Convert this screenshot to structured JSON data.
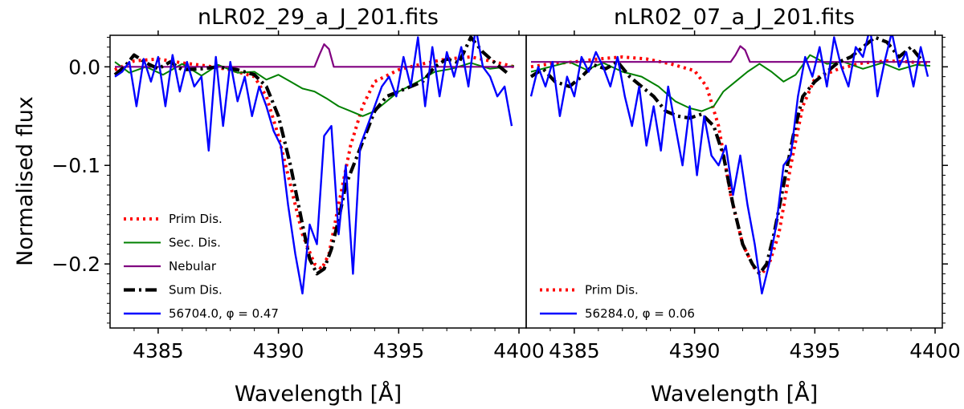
{
  "figure": {
    "ylabel": "Normalised flux"
  },
  "chart_data": [
    {
      "type": "line",
      "title": "nLR02_29_a_J_201.fits",
      "xlabel": "Wavelength [Å]",
      "ylabel": "Normalised flux",
      "xlim": [
        4383,
        4400.3
      ],
      "ylim": [
        -0.265,
        0.032
      ],
      "xticks": [
        4385,
        4390,
        4395,
        4400
      ],
      "xtick_labels": [
        "4385",
        "4390",
        "4395",
        "4400"
      ],
      "yticks": [
        0.0,
        -0.1,
        -0.2
      ],
      "ytick_labels": [
        "0.0",
        "−0.1",
        "−0.2"
      ],
      "legend_position": "lower-left",
      "series": [
        {
          "name": "Prim Dis.",
          "color": "#ff0000",
          "style": "dotted",
          "width": 4,
          "x": [
            4383.2,
            4384,
            4385,
            4386,
            4387,
            4388,
            4389,
            4389.5,
            4390,
            4390.5,
            4391,
            4391.5,
            4391.8,
            4392.1,
            4392.5,
            4393,
            4393.5,
            4394,
            4395,
            4396,
            4397,
            4398,
            4399,
            4399.8
          ],
          "y": [
            -0.003,
            0.006,
            0.008,
            0.004,
            0.001,
            -0.003,
            -0.01,
            -0.03,
            -0.07,
            -0.12,
            -0.17,
            -0.2,
            -0.205,
            -0.19,
            -0.14,
            -0.08,
            -0.04,
            -0.015,
            -0.003,
            0.003,
            0.008,
            0.01,
            0.005,
            0.0
          ]
        },
        {
          "name": "Sec. Dis.",
          "color": "#008000",
          "style": "solid",
          "width": 2,
          "x": [
            4383.2,
            4383.8,
            4384.5,
            4385.2,
            4386,
            4386.8,
            4387.5,
            4388.3,
            4389,
            4389.5,
            4390,
            4390.5,
            4391,
            4391.5,
            4392,
            4392.5,
            4393,
            4393.5,
            4394,
            4394.5,
            4395,
            4395.8,
            4396.5,
            4397.2,
            4398,
            4398.8,
            4399.8
          ],
          "y": [
            0.005,
            -0.006,
            0.0,
            -0.008,
            0.003,
            -0.009,
            0.002,
            -0.006,
            -0.005,
            -0.013,
            -0.008,
            -0.015,
            -0.022,
            -0.025,
            -0.032,
            -0.04,
            -0.045,
            -0.05,
            -0.045,
            -0.035,
            -0.025,
            -0.015,
            -0.005,
            -0.002,
            0.004,
            -0.002,
            0.001
          ]
        },
        {
          "name": "Nebular",
          "color": "#800080",
          "style": "solid",
          "width": 2.2,
          "x": [
            4383.2,
            4391.5,
            4391.7,
            4391.9,
            4392.1,
            4392.3,
            4392.6,
            4399.8
          ],
          "y": [
            0.0,
            0.0,
            0.012,
            0.023,
            0.018,
            0.0,
            0.0,
            0.0
          ]
        },
        {
          "name": "Sum Dis.",
          "color": "#000000",
          "style": "dashdot",
          "width": 4.2,
          "x": [
            4383.2,
            4383.6,
            4384,
            4384.5,
            4385,
            4385.5,
            4386,
            4386.8,
            4387.5,
            4388.3,
            4389,
            4389.5,
            4390,
            4390.5,
            4391,
            4391.3,
            4391.6,
            4391.9,
            4392.2,
            4392.5,
            4392.8,
            4393.2,
            4393.6,
            4394,
            4394.5,
            4395,
            4395.5,
            4396,
            4396.5,
            4397,
            4397.5,
            4398,
            4398.5,
            4399,
            4399.5
          ],
          "y": [
            -0.008,
            0.0,
            0.012,
            0.004,
            -0.002,
            0.005,
            -0.003,
            -0.002,
            0.0,
            -0.003,
            -0.008,
            -0.02,
            -0.05,
            -0.1,
            -0.16,
            -0.195,
            -0.21,
            -0.205,
            -0.185,
            -0.155,
            -0.12,
            -0.095,
            -0.07,
            -0.045,
            -0.03,
            -0.025,
            -0.02,
            -0.015,
            0.0,
            0.008,
            0.004,
            0.03,
            0.015,
            0.004,
            -0.006
          ]
        },
        {
          "name": "56704.0, φ = 0.47",
          "color": "#0000ff",
          "style": "solid",
          "width": 2.4,
          "x": [
            4383.2,
            4383.5,
            4383.8,
            4384.1,
            4384.4,
            4384.7,
            4385.0,
            4385.3,
            4385.6,
            4385.9,
            4386.2,
            4386.5,
            4386.8,
            4387.1,
            4387.4,
            4387.7,
            4388.0,
            4388.3,
            4388.6,
            4388.9,
            4389.2,
            4389.5,
            4389.8,
            4390.1,
            4390.4,
            4390.7,
            4391.0,
            4391.3,
            4391.6,
            4391.9,
            4392.2,
            4392.5,
            4392.8,
            4393.1,
            4393.4,
            4393.7,
            4394.0,
            4394.3,
            4394.6,
            4394.9,
            4395.2,
            4395.5,
            4395.8,
            4396.1,
            4396.4,
            4396.7,
            4397.0,
            4397.3,
            4397.6,
            4397.9,
            4398.2,
            4398.5,
            4398.8,
            4399.1,
            4399.4,
            4399.7
          ],
          "y": [
            -0.01,
            -0.005,
            0.005,
            -0.04,
            0.008,
            -0.015,
            0.01,
            -0.04,
            0.012,
            -0.025,
            0.005,
            -0.02,
            -0.01,
            -0.085,
            0.01,
            -0.06,
            0.005,
            -0.035,
            -0.01,
            -0.05,
            -0.02,
            -0.04,
            -0.065,
            -0.08,
            -0.14,
            -0.19,
            -0.23,
            -0.16,
            -0.18,
            -0.07,
            -0.06,
            -0.17,
            -0.1,
            -0.21,
            -0.08,
            -0.06,
            -0.04,
            -0.02,
            -0.01,
            -0.03,
            0.01,
            -0.02,
            0.03,
            -0.04,
            0.02,
            -0.03,
            0.015,
            -0.01,
            0.02,
            -0.02,
            0.04,
            0.0,
            -0.01,
            -0.03,
            -0.02,
            -0.06
          ]
        }
      ]
    },
    {
      "type": "line",
      "title": "nLR02_07_a_J_201.fits",
      "xlabel": "Wavelength [Å]",
      "ylabel": "Normalised flux",
      "xlim": [
        4383,
        4400.3
      ],
      "ylim": [
        -0.265,
        0.032
      ],
      "xticks": [
        4385,
        4390,
        4395,
        4400
      ],
      "xtick_labels": [
        "4385",
        "4390",
        "4395",
        "4400"
      ],
      "yticks": [
        0.0,
        -0.1,
        -0.2
      ],
      "legend_position": "lower-left",
      "series": [
        {
          "name": "Prim Dis.",
          "color": "#ff0000",
          "style": "dotted",
          "width": 4,
          "x": [
            4383.2,
            4384,
            4385,
            4386,
            4387,
            4388,
            4389,
            4390,
            4390.5,
            4391,
            4391.5,
            4392,
            4392.5,
            4392.8,
            4393.1,
            4393.5,
            4394,
            4394.5,
            4395,
            4396,
            4397,
            4398,
            4399,
            4399.8
          ],
          "y": [
            0.0,
            0.003,
            0.005,
            0.008,
            0.01,
            0.008,
            0.003,
            -0.004,
            -0.02,
            -0.06,
            -0.13,
            -0.18,
            -0.205,
            -0.21,
            -0.2,
            -0.17,
            -0.1,
            -0.04,
            -0.012,
            -0.002,
            0.004,
            0.006,
            0.005,
            0.002
          ]
        },
        {
          "name": "Sec. Dis.",
          "color": "#008000",
          "style": "solid",
          "width": 2,
          "hide_legend": true,
          "x": [
            4383.2,
            4384,
            4384.8,
            4385.5,
            4386.2,
            4387,
            4387.8,
            4388.5,
            4389.2,
            4389.8,
            4390.3,
            4390.8,
            4391.2,
            4391.7,
            4392.2,
            4392.7,
            4393.2,
            4393.7,
            4394.2,
            4394.8,
            4395.5,
            4396.2,
            4397,
            4397.8,
            4398.5,
            4399.2,
            4399.8
          ],
          "y": [
            -0.005,
            0.0,
            0.005,
            -0.003,
            0.004,
            -0.005,
            -0.01,
            -0.02,
            -0.035,
            -0.042,
            -0.045,
            -0.04,
            -0.025,
            -0.015,
            -0.005,
            0.003,
            -0.005,
            -0.015,
            -0.008,
            0.012,
            0.003,
            0.005,
            -0.002,
            0.004,
            -0.003,
            0.002,
            0.001
          ]
        },
        {
          "name": "Nebular",
          "color": "#800080",
          "style": "solid",
          "width": 2.2,
          "hide_legend": true,
          "x": [
            4383.2,
            4391.5,
            4391.7,
            4391.9,
            4392.1,
            4392.3,
            4392.6,
            4399.8
          ],
          "y": [
            0.005,
            0.005,
            0.012,
            0.021,
            0.017,
            0.005,
            0.005,
            0.005
          ]
        },
        {
          "name": "Sum Dis.",
          "color": "#000000",
          "style": "dashdot",
          "width": 4.2,
          "hide_legend": true,
          "x": [
            4383.2,
            4383.7,
            4384.2,
            4384.8,
            4385.3,
            4385.8,
            4386.3,
            4386.8,
            4387.3,
            4387.8,
            4388.3,
            4388.8,
            4389.3,
            4389.8,
            4390.3,
            4390.8,
            4391.2,
            4391.6,
            4392.0,
            4392.4,
            4392.7,
            4393.0,
            4393.3,
            4393.7,
            4394.1,
            4394.5,
            4395.0,
            4395.5,
            4396.0,
            4396.5,
            4397.0,
            4397.5,
            4398.0,
            4398.5,
            4399.0,
            4399.5
          ],
          "y": [
            -0.01,
            -0.002,
            -0.015,
            -0.02,
            -0.01,
            0.002,
            -0.002,
            0.005,
            -0.01,
            -0.02,
            -0.03,
            -0.045,
            -0.05,
            -0.052,
            -0.048,
            -0.06,
            -0.09,
            -0.14,
            -0.18,
            -0.2,
            -0.21,
            -0.2,
            -0.17,
            -0.12,
            -0.07,
            -0.03,
            -0.015,
            -0.005,
            0.005,
            0.01,
            0.02,
            0.03,
            0.025,
            0.01,
            0.02,
            0.005
          ]
        },
        {
          "name": "56284.0, φ = 0.06",
          "color": "#0000ff",
          "style": "solid",
          "width": 2.4,
          "x": [
            4383.2,
            4383.5,
            4383.8,
            4384.1,
            4384.4,
            4384.7,
            4385.0,
            4385.3,
            4385.6,
            4385.9,
            4386.2,
            4386.5,
            4386.8,
            4387.1,
            4387.4,
            4387.7,
            4388.0,
            4388.3,
            4388.6,
            4388.9,
            4389.2,
            4389.5,
            4389.8,
            4390.1,
            4390.4,
            4390.7,
            4391.0,
            4391.3,
            4391.6,
            4391.9,
            4392.2,
            4392.5,
            4392.8,
            4393.1,
            4393.4,
            4393.7,
            4394.0,
            4394.3,
            4394.6,
            4394.9,
            4395.2,
            4395.5,
            4395.8,
            4396.1,
            4396.4,
            4396.7,
            4397.0,
            4397.3,
            4397.6,
            4397.9,
            4398.2,
            4398.5,
            4398.8,
            4399.1,
            4399.4,
            4399.7
          ],
          "y": [
            -0.03,
            0.0,
            -0.02,
            0.005,
            -0.05,
            -0.01,
            -0.03,
            0.01,
            -0.005,
            0.015,
            0.0,
            -0.02,
            0.01,
            -0.03,
            -0.06,
            -0.02,
            -0.08,
            -0.04,
            -0.085,
            -0.02,
            -0.06,
            -0.1,
            -0.04,
            -0.11,
            -0.05,
            -0.09,
            -0.1,
            -0.08,
            -0.13,
            -0.09,
            -0.14,
            -0.18,
            -0.23,
            -0.2,
            -0.16,
            -0.1,
            -0.09,
            -0.03,
            0.01,
            -0.01,
            0.02,
            -0.02,
            0.03,
            0.0,
            -0.02,
            0.02,
            0.01,
            0.04,
            -0.03,
            0.005,
            0.035,
            0.0,
            0.015,
            -0.02,
            0.02,
            -0.01
          ]
        }
      ]
    }
  ]
}
